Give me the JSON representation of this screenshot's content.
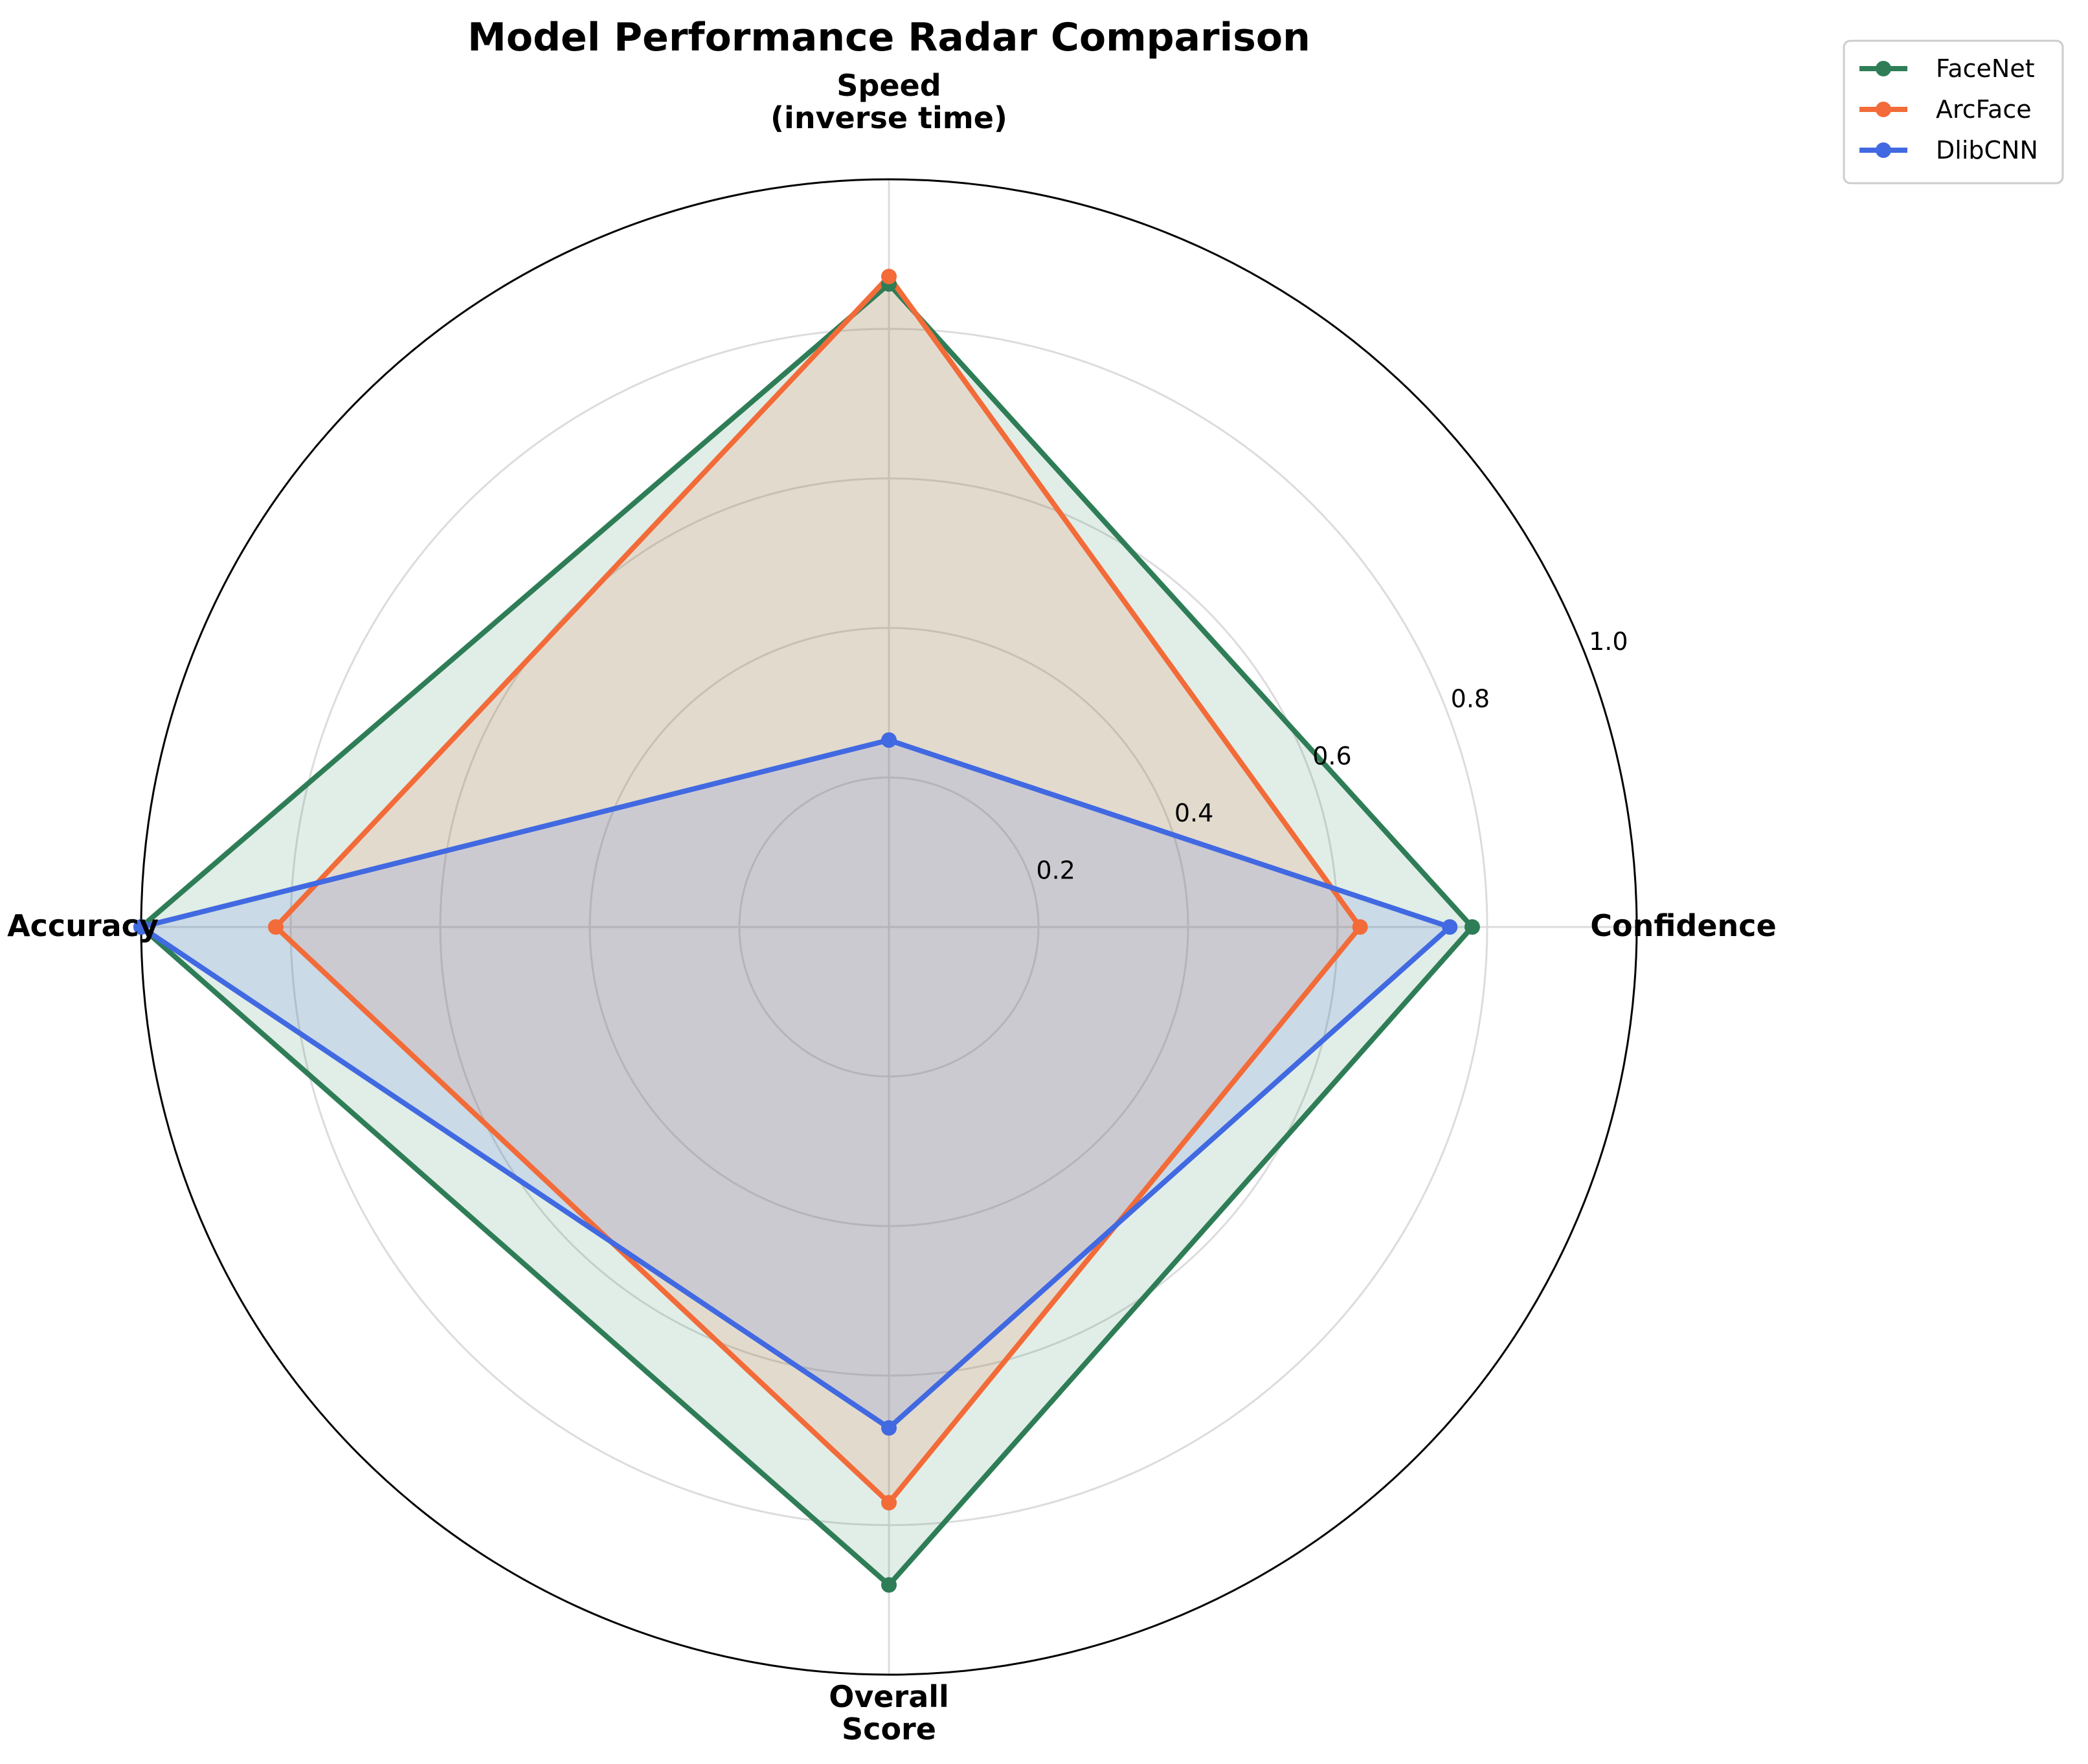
{
  "chart_data": {
    "type": "radar",
    "title": "Model Performance Radar Comparison",
    "axes": [
      [
        "Confidence"
      ],
      [
        "Speed",
        "(inverse time)"
      ],
      [
        "Accuracy"
      ],
      [
        "Overall",
        "Score"
      ]
    ],
    "rlim": [
      0,
      1.0
    ],
    "r_ticks": [
      "0.2",
      "0.4",
      "0.6",
      "0.8",
      "1.0"
    ],
    "r_tick_values": [
      0.2,
      0.4,
      0.6,
      0.8,
      1.0
    ],
    "grid": true,
    "legend_position": "top-right",
    "series": [
      {
        "name": "FaceNet",
        "color": "#2e7d57",
        "values": [
          0.78,
          0.86,
          1.0,
          0.88
        ]
      },
      {
        "name": "ArcFace",
        "color": "#f26b38",
        "values": [
          0.63,
          0.87,
          0.82,
          0.77
        ]
      },
      {
        "name": "DlibCNN",
        "color": "#4169e1",
        "values": [
          0.75,
          0.25,
          1.0,
          0.67
        ]
      }
    ]
  }
}
